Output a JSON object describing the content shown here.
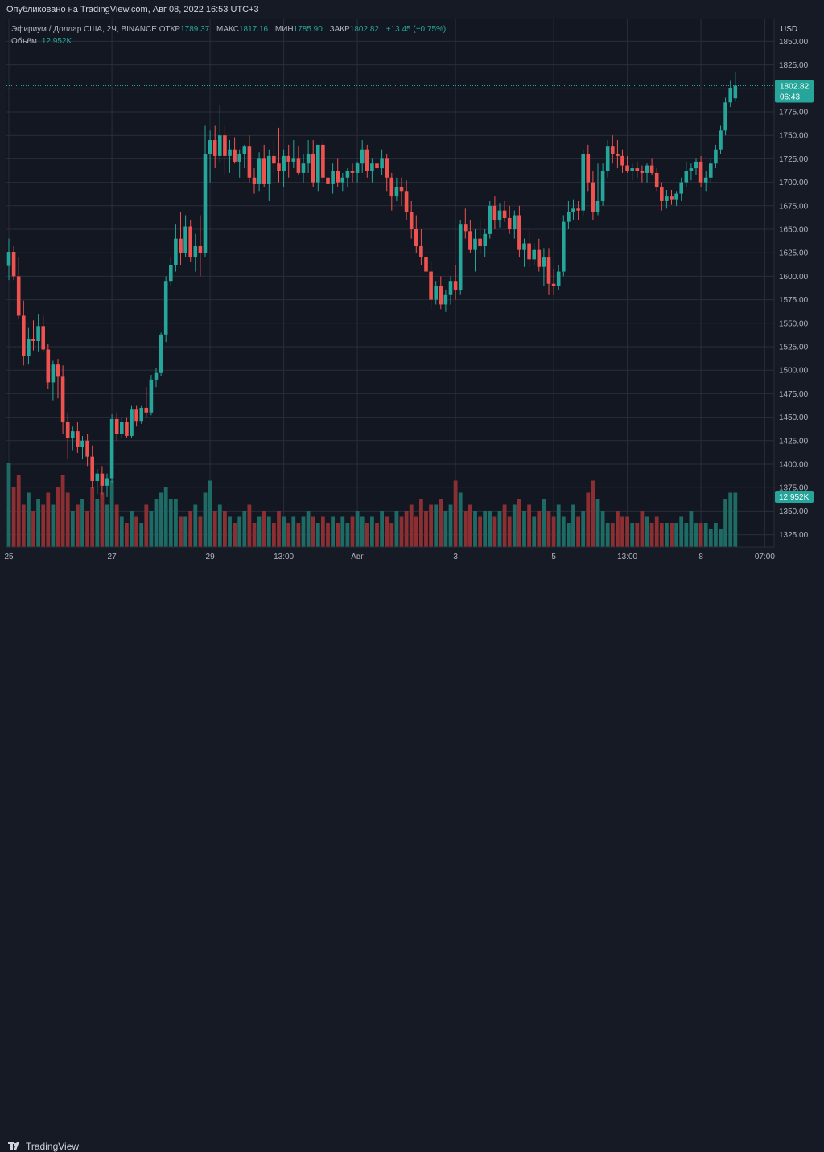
{
  "header": {
    "published": "Опубликовано на TradingView.com, Авг 08, 2022 16:53 UTC+3"
  },
  "legend": {
    "symbol": "Эфириум / Доллар США, 2Ч, BINANCE",
    "open_label": "ОТКР",
    "open": "1789.37",
    "high_label": "МАКС",
    "high": "1817.16",
    "low_label": "МИН",
    "low": "1785.90",
    "close_label": "ЗАКР",
    "close": "1802.82",
    "change": "+13.45 (+0.75%)",
    "volume_label": "Объём",
    "volume": "12.952K"
  },
  "axis": {
    "currency": "USD",
    "price_badge": "1802.82",
    "countdown": "06:43",
    "volume_badge": "12.952K"
  },
  "footer": {
    "brand": "TradingView"
  },
  "colors": {
    "up": "#26a69a",
    "down": "#ef5350",
    "up_vol": "#1e6b66",
    "down_vol": "#8b2f32",
    "grid": "#2a2e39",
    "bg": "#131722"
  },
  "chart_data": {
    "type": "candlestick",
    "ylim": [
      1312,
      1858
    ],
    "yticks": [
      1325,
      1350,
      1375,
      1400,
      1425,
      1450,
      1475,
      1500,
      1525,
      1550,
      1575,
      1600,
      1625,
      1650,
      1675,
      1700,
      1725,
      1750,
      1775,
      1800,
      1825,
      1850
    ],
    "xticks": [
      {
        "label": "25",
        "i": 0
      },
      {
        "label": "27",
        "i": 21
      },
      {
        "label": "29",
        "i": 41
      },
      {
        "label": "13:00",
        "i": 56
      },
      {
        "label": "Авг",
        "i": 71
      },
      {
        "label": "3",
        "i": 91
      },
      {
        "label": "5",
        "i": 111
      },
      {
        "label": "13:00",
        "i": 126
      },
      {
        "label": "8",
        "i": 141
      },
      {
        "label": "07:00",
        "i": 154
      }
    ],
    "ohlcv": [
      [
        1611,
        1640,
        1596,
        1626,
        1.4
      ],
      [
        1626,
        1632,
        1596,
        1600,
        1.0
      ],
      [
        1600,
        1620,
        1555,
        1558,
        1.2
      ],
      [
        1558,
        1574,
        1505,
        1515,
        0.7
      ],
      [
        1515,
        1545,
        1506,
        1533,
        0.9
      ],
      [
        1533,
        1553,
        1521,
        1531,
        0.6
      ],
      [
        1531,
        1560,
        1520,
        1547,
        0.8
      ],
      [
        1547,
        1558,
        1520,
        1522,
        0.7
      ],
      [
        1522,
        1528,
        1480,
        1487,
        0.9
      ],
      [
        1487,
        1510,
        1468,
        1506,
        0.7
      ],
      [
        1506,
        1512,
        1470,
        1493,
        1.0
      ],
      [
        1493,
        1505,
        1432,
        1445,
        1.2
      ],
      [
        1445,
        1455,
        1405,
        1428,
        0.9
      ],
      [
        1428,
        1440,
        1415,
        1435,
        0.6
      ],
      [
        1435,
        1445,
        1412,
        1418,
        0.7
      ],
      [
        1418,
        1430,
        1405,
        1425,
        0.8
      ],
      [
        1425,
        1432,
        1398,
        1408,
        0.6
      ],
      [
        1408,
        1420,
        1375,
        1382,
        1.0
      ],
      [
        1382,
        1395,
        1368,
        1390,
        0.8
      ],
      [
        1390,
        1398,
        1368,
        1377,
        0.9
      ],
      [
        1377,
        1390,
        1365,
        1385,
        0.7
      ],
      [
        1385,
        1453,
        1380,
        1448,
        1.1
      ],
      [
        1448,
        1455,
        1425,
        1432,
        0.7
      ],
      [
        1432,
        1450,
        1428,
        1445,
        0.5
      ],
      [
        1445,
        1450,
        1428,
        1430,
        0.4
      ],
      [
        1430,
        1462,
        1428,
        1458,
        0.6
      ],
      [
        1458,
        1462,
        1440,
        1446,
        0.5
      ],
      [
        1446,
        1462,
        1443,
        1460,
        0.4
      ],
      [
        1460,
        1482,
        1450,
        1455,
        0.7
      ],
      [
        1455,
        1495,
        1452,
        1490,
        0.6
      ],
      [
        1490,
        1502,
        1482,
        1497,
        0.8
      ],
      [
        1497,
        1540,
        1494,
        1538,
        0.9
      ],
      [
        1538,
        1600,
        1530,
        1595,
        1.0
      ],
      [
        1595,
        1620,
        1590,
        1612,
        0.8
      ],
      [
        1612,
        1655,
        1605,
        1640,
        0.8
      ],
      [
        1640,
        1668,
        1612,
        1625,
        0.5
      ],
      [
        1625,
        1665,
        1620,
        1653,
        0.5
      ],
      [
        1653,
        1660,
        1615,
        1620,
        0.6
      ],
      [
        1620,
        1645,
        1605,
        1632,
        0.7
      ],
      [
        1632,
        1665,
        1600,
        1625,
        0.5
      ],
      [
        1625,
        1760,
        1620,
        1730,
        0.9
      ],
      [
        1730,
        1755,
        1700,
        1745,
        1.1
      ],
      [
        1745,
        1760,
        1715,
        1728,
        0.6
      ],
      [
        1728,
        1782,
        1722,
        1750,
        0.7
      ],
      [
        1750,
        1760,
        1708,
        1728,
        0.6
      ],
      [
        1728,
        1745,
        1710,
        1735,
        0.5
      ],
      [
        1735,
        1748,
        1720,
        1722,
        0.4
      ],
      [
        1722,
        1735,
        1705,
        1730,
        0.5
      ],
      [
        1730,
        1740,
        1715,
        1738,
        0.6
      ],
      [
        1738,
        1750,
        1700,
        1705,
        0.7
      ],
      [
        1705,
        1715,
        1688,
        1698,
        0.4
      ],
      [
        1698,
        1732,
        1690,
        1725,
        0.5
      ],
      [
        1725,
        1740,
        1695,
        1698,
        0.6
      ],
      [
        1698,
        1735,
        1680,
        1728,
        0.5
      ],
      [
        1728,
        1745,
        1710,
        1720,
        0.4
      ],
      [
        1720,
        1758,
        1700,
        1712,
        0.6
      ],
      [
        1712,
        1735,
        1695,
        1728,
        0.5
      ],
      [
        1728,
        1740,
        1705,
        1722,
        0.4
      ],
      [
        1722,
        1745,
        1715,
        1725,
        0.5
      ],
      [
        1725,
        1738,
        1708,
        1710,
        0.4
      ],
      [
        1710,
        1730,
        1700,
        1720,
        0.5
      ],
      [
        1720,
        1745,
        1710,
        1730,
        0.6
      ],
      [
        1730,
        1745,
        1695,
        1700,
        0.5
      ],
      [
        1700,
        1738,
        1690,
        1740,
        0.4
      ],
      [
        1740,
        1745,
        1700,
        1705,
        0.5
      ],
      [
        1705,
        1720,
        1690,
        1698,
        0.4
      ],
      [
        1698,
        1720,
        1688,
        1712,
        0.5
      ],
      [
        1712,
        1725,
        1695,
        1700,
        0.4
      ],
      [
        1700,
        1710,
        1690,
        1705,
        0.5
      ],
      [
        1705,
        1715,
        1695,
        1712,
        0.4
      ],
      [
        1712,
        1720,
        1700,
        1710,
        0.5
      ],
      [
        1710,
        1722,
        1700,
        1720,
        0.6
      ],
      [
        1720,
        1745,
        1710,
        1735,
        0.5
      ],
      [
        1735,
        1740,
        1705,
        1712,
        0.4
      ],
      [
        1712,
        1725,
        1700,
        1720,
        0.5
      ],
      [
        1720,
        1728,
        1705,
        1715,
        0.4
      ],
      [
        1715,
        1735,
        1708,
        1725,
        0.6
      ],
      [
        1725,
        1730,
        1690,
        1705,
        0.5
      ],
      [
        1705,
        1710,
        1670,
        1685,
        0.4
      ],
      [
        1685,
        1705,
        1680,
        1695,
        0.6
      ],
      [
        1695,
        1705,
        1675,
        1690,
        0.5
      ],
      [
        1690,
        1702,
        1660,
        1668,
        0.6
      ],
      [
        1668,
        1680,
        1640,
        1650,
        0.7
      ],
      [
        1650,
        1665,
        1625,
        1632,
        0.5
      ],
      [
        1632,
        1650,
        1612,
        1620,
        0.8
      ],
      [
        1620,
        1630,
        1600,
        1605,
        0.6
      ],
      [
        1605,
        1615,
        1565,
        1575,
        0.7
      ],
      [
        1575,
        1595,
        1570,
        1590,
        0.7
      ],
      [
        1590,
        1600,
        1565,
        1570,
        0.8
      ],
      [
        1570,
        1585,
        1562,
        1580,
        0.6
      ],
      [
        1580,
        1600,
        1570,
        1595,
        0.7
      ],
      [
        1595,
        1612,
        1575,
        1585,
        1.1
      ],
      [
        1585,
        1660,
        1580,
        1655,
        0.9
      ],
      [
        1655,
        1672,
        1640,
        1648,
        0.6
      ],
      [
        1648,
        1660,
        1625,
        1628,
        0.7
      ],
      [
        1628,
        1650,
        1605,
        1640,
        0.6
      ],
      [
        1640,
        1660,
        1625,
        1632,
        0.5
      ],
      [
        1632,
        1650,
        1620,
        1645,
        0.6
      ],
      [
        1645,
        1680,
        1640,
        1675,
        0.6
      ],
      [
        1675,
        1685,
        1650,
        1660,
        0.5
      ],
      [
        1660,
        1678,
        1652,
        1670,
        0.6
      ],
      [
        1670,
        1680,
        1658,
        1662,
        0.7
      ],
      [
        1662,
        1675,
        1645,
        1650,
        0.5
      ],
      [
        1650,
        1670,
        1640,
        1665,
        0.7
      ],
      [
        1665,
        1675,
        1620,
        1628,
        0.8
      ],
      [
        1628,
        1640,
        1610,
        1635,
        0.6
      ],
      [
        1635,
        1650,
        1610,
        1618,
        0.7
      ],
      [
        1618,
        1635,
        1612,
        1628,
        0.5
      ],
      [
        1628,
        1640,
        1605,
        1610,
        0.6
      ],
      [
        1610,
        1630,
        1590,
        1620,
        0.8
      ],
      [
        1620,
        1630,
        1580,
        1592,
        0.6
      ],
      [
        1592,
        1608,
        1580,
        1590,
        0.5
      ],
      [
        1590,
        1612,
        1585,
        1605,
        0.7
      ],
      [
        1605,
        1665,
        1600,
        1658,
        0.5
      ],
      [
        1658,
        1680,
        1650,
        1668,
        0.4
      ],
      [
        1668,
        1682,
        1660,
        1672,
        0.7
      ],
      [
        1672,
        1680,
        1660,
        1670,
        0.5
      ],
      [
        1670,
        1735,
        1665,
        1730,
        0.6
      ],
      [
        1730,
        1740,
        1690,
        1700,
        0.9
      ],
      [
        1700,
        1712,
        1660,
        1668,
        1.1
      ],
      [
        1668,
        1720,
        1665,
        1680,
        0.8
      ],
      [
        1680,
        1720,
        1675,
        1712,
        0.6
      ],
      [
        1712,
        1745,
        1705,
        1738,
        0.4
      ],
      [
        1738,
        1750,
        1720,
        1730,
        0.4
      ],
      [
        1730,
        1745,
        1715,
        1728,
        0.6
      ],
      [
        1728,
        1735,
        1710,
        1718,
        0.5
      ],
      [
        1718,
        1728,
        1710,
        1712,
        0.5
      ],
      [
        1712,
        1720,
        1702,
        1715,
        0.4
      ],
      [
        1715,
        1722,
        1705,
        1712,
        0.4
      ],
      [
        1712,
        1718,
        1700,
        1710,
        0.6
      ],
      [
        1710,
        1720,
        1700,
        1718,
        0.5
      ],
      [
        1718,
        1725,
        1708,
        1710,
        0.4
      ],
      [
        1710,
        1715,
        1690,
        1695,
        0.5
      ],
      [
        1695,
        1700,
        1670,
        1680,
        0.4
      ],
      [
        1680,
        1692,
        1672,
        1685,
        0.4
      ],
      [
        1685,
        1692,
        1676,
        1682,
        0.4
      ],
      [
        1682,
        1690,
        1675,
        1688,
        0.4
      ],
      [
        1688,
        1705,
        1680,
        1700,
        0.5
      ],
      [
        1700,
        1722,
        1695,
        1712,
        0.4
      ],
      [
        1712,
        1720,
        1702,
        1715,
        0.6
      ],
      [
        1715,
        1725,
        1708,
        1722,
        0.4
      ],
      [
        1722,
        1728,
        1695,
        1700,
        0.4
      ],
      [
        1700,
        1712,
        1690,
        1705,
        0.4
      ],
      [
        1705,
        1725,
        1700,
        1720,
        0.3
      ],
      [
        1720,
        1740,
        1715,
        1735,
        0.4
      ],
      [
        1735,
        1760,
        1730,
        1755,
        0.3
      ],
      [
        1755,
        1790,
        1750,
        1785,
        0.8
      ],
      [
        1785,
        1808,
        1780,
        1800,
        0.9
      ],
      [
        1789.37,
        1817.16,
        1785.9,
        1802.82,
        0.9
      ]
    ]
  }
}
